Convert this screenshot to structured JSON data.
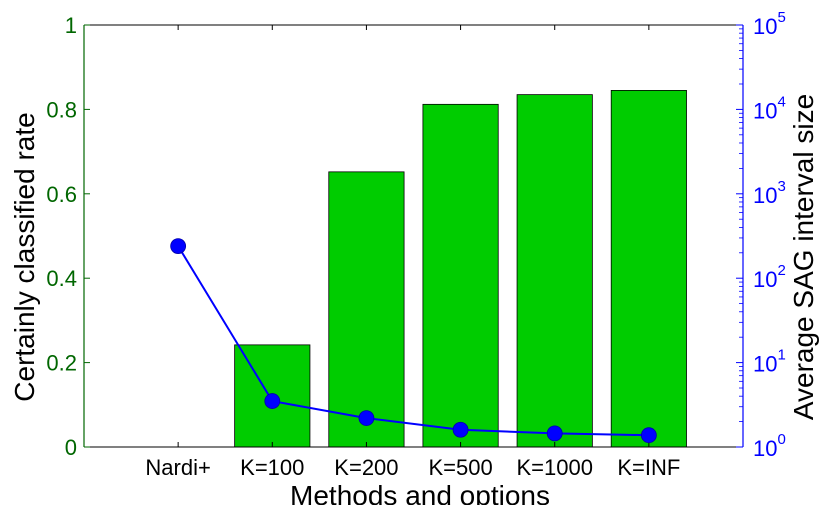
{
  "chart_data": {
    "type": "bar",
    "categories": [
      "Nardi+",
      "K=100",
      "K=200",
      "K=500",
      "K=1000",
      "K=INF"
    ],
    "series": [
      {
        "axis": "left",
        "type": "bar",
        "color": "#00cc00",
        "values": [
          0,
          0.242,
          0.652,
          0.812,
          0.835,
          0.845
        ]
      },
      {
        "axis": "right",
        "type": "line",
        "color": "#0000ff",
        "values": [
          240,
          3.5,
          2.2,
          1.6,
          1.45,
          1.38
        ]
      }
    ],
    "xlabel": "Methods and options",
    "ylabel_left": "Certainly classified rate",
    "ylabel_right": "Average SAG interval size",
    "ylim_left": [
      0,
      1
    ],
    "yticks_left": [
      "0",
      "0.2",
      "0.4",
      "0.6",
      "0.8",
      "1"
    ],
    "ylim_right": [
      1,
      100000
    ],
    "yscale_right": "log",
    "yticks_right": [
      {
        "base": "10",
        "exp": "0"
      },
      {
        "base": "10",
        "exp": "1"
      },
      {
        "base": "10",
        "exp": "2"
      },
      {
        "base": "10",
        "exp": "3"
      },
      {
        "base": "10",
        "exp": "4"
      },
      {
        "base": "10",
        "exp": "5"
      }
    ],
    "grid": false,
    "colors": {
      "left_axis": "#006600",
      "right_axis": "#0000ff",
      "x_axis": "#000000"
    }
  }
}
